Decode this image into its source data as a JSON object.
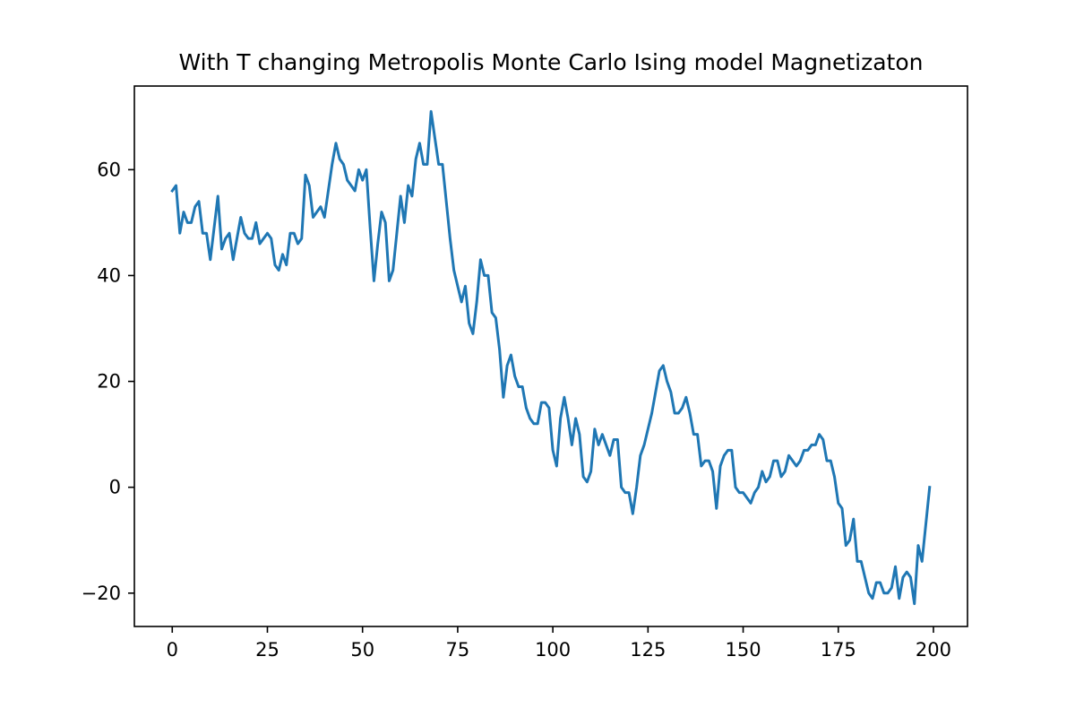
{
  "chart_data": {
    "type": "line",
    "title": "With T changing Metropolis Monte Carlo Ising model Magnetizaton",
    "xlabel": "",
    "ylabel": "",
    "xlim": [
      -9.95,
      208.95
    ],
    "ylim": [
      -26.3,
      75.8
    ],
    "xticks": [
      0,
      25,
      50,
      75,
      100,
      125,
      150,
      175,
      200
    ],
    "xtick_labels": [
      "0",
      "25",
      "50",
      "75",
      "100",
      "125",
      "150",
      "175",
      "200"
    ],
    "yticks": [
      -20,
      0,
      20,
      40,
      60
    ],
    "ytick_labels": [
      "−20",
      "0",
      "20",
      "40",
      "60"
    ],
    "grid": false,
    "legend": "none",
    "series": [
      {
        "color": "#1f77b4",
        "x": [
          0,
          1,
          2,
          3,
          4,
          5,
          6,
          7,
          8,
          9,
          10,
          11,
          12,
          13,
          14,
          15,
          16,
          17,
          18,
          19,
          20,
          21,
          22,
          23,
          24,
          25,
          26,
          27,
          28,
          29,
          30,
          31,
          32,
          33,
          34,
          35,
          36,
          37,
          38,
          39,
          40,
          41,
          42,
          43,
          44,
          45,
          46,
          47,
          48,
          49,
          50,
          51,
          52,
          53,
          54,
          55,
          56,
          57,
          58,
          59,
          60,
          61,
          62,
          63,
          64,
          65,
          66,
          67,
          68,
          69,
          70,
          71,
          72,
          73,
          74,
          75,
          76,
          77,
          78,
          79,
          80,
          81,
          82,
          83,
          84,
          85,
          86,
          87,
          88,
          89,
          90,
          91,
          92,
          93,
          94,
          95,
          96,
          97,
          98,
          99,
          100,
          101,
          102,
          103,
          104,
          105,
          106,
          107,
          108,
          109,
          110,
          111,
          112,
          113,
          114,
          115,
          116,
          117,
          118,
          119,
          120,
          121,
          122,
          123,
          124,
          125,
          126,
          127,
          128,
          129,
          130,
          131,
          132,
          133,
          134,
          135,
          136,
          137,
          138,
          139,
          140,
          141,
          142,
          143,
          144,
          145,
          146,
          147,
          148,
          149,
          150,
          151,
          152,
          153,
          154,
          155,
          156,
          157,
          158,
          159,
          160,
          161,
          162,
          163,
          164,
          165,
          166,
          167,
          168,
          169,
          170,
          171,
          172,
          173,
          174,
          175,
          176,
          177,
          178,
          179,
          180,
          181,
          182,
          183,
          184,
          185,
          186,
          187,
          188,
          189,
          190,
          191,
          192,
          193,
          194,
          195,
          196,
          197,
          198,
          199
        ],
        "values": [
          56,
          57,
          48,
          52,
          50,
          50,
          53,
          54,
          48,
          48,
          43,
          49,
          55,
          45,
          47,
          48,
          43,
          47,
          51,
          48,
          47,
          47,
          50,
          46,
          47,
          48,
          47,
          42,
          41,
          44,
          42,
          48,
          48,
          46,
          47,
          59,
          57,
          51,
          52,
          53,
          51,
          56,
          61,
          65,
          62,
          61,
          58,
          57,
          56,
          60,
          58,
          60,
          49,
          39,
          46,
          52,
          50,
          39,
          41,
          48,
          55,
          50,
          57,
          55,
          62,
          65,
          61,
          61,
          71,
          66,
          61,
          61,
          54,
          47,
          41,
          38,
          35,
          38,
          31,
          29,
          35,
          43,
          40,
          40,
          33,
          32,
          26,
          17,
          23,
          25,
          21,
          19,
          19,
          15,
          13,
          12,
          12,
          16,
          16,
          15,
          7,
          4,
          13,
          17,
          13,
          8,
          13,
          10,
          2,
          1,
          3,
          11,
          8,
          10,
          8,
          6,
          9,
          9,
          0,
          -1,
          -1,
          -5,
          0,
          6,
          8,
          11,
          14,
          18,
          22,
          23,
          20,
          18,
          14,
          14,
          15,
          17,
          14,
          10,
          10,
          4,
          5,
          5,
          3,
          -4,
          4,
          6,
          7,
          7,
          0,
          -1,
          -1,
          -2,
          -3,
          -1,
          0,
          3,
          1,
          2,
          5,
          5,
          2,
          3,
          6,
          5,
          4,
          5,
          7,
          7,
          8,
          8,
          10,
          9,
          5,
          5,
          2,
          -3,
          -4,
          -11,
          -10,
          -6,
          -14,
          -14,
          -17,
          -20,
          -21,
          -18,
          -18,
          -20,
          -20,
          -19,
          -15,
          -21,
          -17,
          -16,
          -17,
          -22,
          -11,
          -14,
          -7,
          0
        ]
      }
    ]
  }
}
